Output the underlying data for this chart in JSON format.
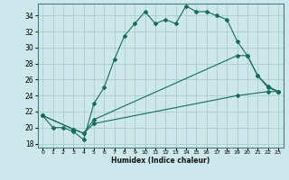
{
  "xlabel": "Humidex (Indice chaleur)",
  "bg_color": "#cce8ec",
  "grid_color": "#aacccc",
  "line_color": "#1a6b5a",
  "xlim": [
    -0.5,
    23.5
  ],
  "ylim": [
    17.5,
    35.5
  ],
  "xticks": [
    0,
    1,
    2,
    3,
    4,
    5,
    6,
    7,
    8,
    9,
    10,
    11,
    12,
    13,
    14,
    15,
    16,
    17,
    18,
    19,
    20,
    21,
    22,
    23
  ],
  "yticks": [
    18,
    20,
    22,
    24,
    26,
    28,
    30,
    32,
    34
  ],
  "line1_x": [
    0,
    1,
    2,
    3,
    4,
    5,
    6,
    7,
    8,
    9,
    10,
    11,
    12,
    13,
    14,
    15,
    16,
    17,
    18,
    19,
    20,
    21,
    22,
    23
  ],
  "line1_y": [
    21.5,
    20.0,
    20.0,
    19.5,
    18.5,
    23.0,
    25.0,
    28.5,
    31.5,
    33.0,
    34.5,
    33.0,
    33.5,
    33.0,
    35.2,
    34.5,
    34.5,
    34.0,
    33.5,
    30.8,
    29.0,
    26.5,
    25.0,
    24.5
  ],
  "line2_x": [
    0,
    3,
    4,
    5,
    19,
    20,
    21,
    22,
    23
  ],
  "line2_y": [
    21.5,
    19.8,
    19.3,
    21.0,
    29.0,
    29.0,
    26.5,
    25.2,
    24.5
  ],
  "line3_x": [
    0,
    3,
    4,
    5,
    19,
    22,
    23
  ],
  "line3_y": [
    21.5,
    19.8,
    19.3,
    20.5,
    24.0,
    24.5,
    24.5
  ]
}
